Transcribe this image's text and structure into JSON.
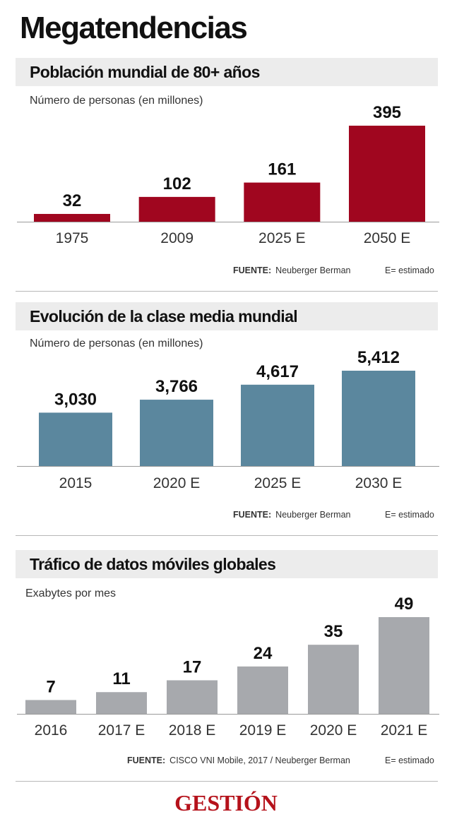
{
  "title": "Megatendencias",
  "colors": {
    "red": "#a0061f",
    "blue": "#5b879e",
    "gray": "#a7a9ad"
  },
  "chart_data": [
    {
      "type": "bar",
      "title": "Población mundial de 80+ años",
      "subtitle": "Número de personas (en millones)",
      "categories": [
        "1975",
        "2009",
        "2025 E",
        "2050 E"
      ],
      "values": [
        32,
        102,
        161,
        395
      ],
      "value_labels": [
        "32",
        "102",
        "161",
        "395"
      ],
      "ylim": [
        0,
        395
      ],
      "color": "#a0061f",
      "source_label": "FUENTE:",
      "source": "Neuberger Berman",
      "note": "E= estimado"
    },
    {
      "type": "bar",
      "title": "Evolución de la clase media mundial",
      "subtitle": "Número de personas (en millones)",
      "categories": [
        "2015",
        "2020 E",
        "2025 E",
        "2030 E"
      ],
      "values": [
        3030,
        3766,
        4617,
        5412
      ],
      "value_labels": [
        "3,030",
        "3,766",
        "4,617",
        "5,412"
      ],
      "ylim": [
        0,
        5412
      ],
      "color": "#5b879e",
      "source_label": "FUENTE:",
      "source": "Neuberger Berman",
      "note": "E= estimado"
    },
    {
      "type": "bar",
      "title": "Tráfico de datos móviles globales",
      "subtitle": "Exabytes por mes",
      "categories": [
        "2016",
        "2017 E",
        "2018 E",
        "2019 E",
        "2020 E",
        "2021 E"
      ],
      "values": [
        7,
        11,
        17,
        24,
        35,
        49
      ],
      "value_labels": [
        "7",
        "11",
        "17",
        "24",
        "35",
        "49"
      ],
      "ylim": [
        0,
        49
      ],
      "color": "#a7a9ad",
      "source_label": "FUENTE:",
      "source": "CISCO VNI Mobile, 2017 / Neuberger Berman",
      "note": "E= estimado"
    }
  ],
  "logo": "GESTIÓN"
}
